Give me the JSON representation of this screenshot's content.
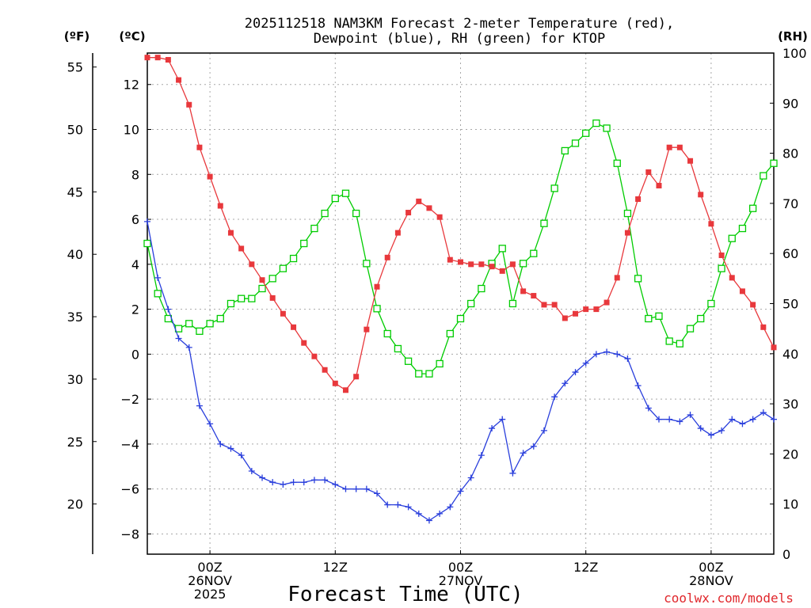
{
  "chart_data": {
    "type": "line",
    "title": [
      "2025112518 NAM3KM Forecast 2-meter Temperature (red),",
      "Dewpoint (blue), RH (green) for KTOP"
    ],
    "xlabel": "Forecast Time (UTC)",
    "credit": "coolwx.com/models",
    "units": {
      "fahrenheit": "(ºF)",
      "celsius": "(ºC)",
      "rh": "(RH)"
    },
    "x_range_hours": [
      0,
      60
    ],
    "x_ticks": [
      {
        "hour": 6,
        "lines": [
          "00Z",
          "26NOV",
          "2025"
        ]
      },
      {
        "hour": 18,
        "lines": [
          "12Z"
        ]
      },
      {
        "hour": 30,
        "lines": [
          "00Z",
          "27NOV"
        ]
      },
      {
        "hour": 42,
        "lines": [
          "12Z"
        ]
      },
      {
        "hour": 54,
        "lines": [
          "00Z",
          "28NOV"
        ]
      }
    ],
    "y_celsius": {
      "range": [
        -8.9,
        13.4
      ],
      "ticks": [
        "-8",
        "-6",
        "-4",
        "-2",
        "0",
        "2",
        "4",
        "6",
        "8",
        "10",
        "12"
      ]
    },
    "y_fahrenheit": {
      "ticks": [
        "20",
        "25",
        "30",
        "35",
        "40",
        "45",
        "50",
        "55"
      ]
    },
    "y_rh": {
      "range": [
        0,
        100
      ],
      "ticks": [
        "0",
        "10",
        "20",
        "30",
        "40",
        "50",
        "60",
        "70",
        "80",
        "90",
        "100"
      ]
    },
    "colors": {
      "temperature": "#e8383c",
      "dewpoint": "#2a3fdc",
      "rh": "#00cc00"
    },
    "series": [
      {
        "name": "Temperature",
        "units": "C",
        "marker": "filled-square",
        "values": [
          13.2,
          13.2,
          13.1,
          12.2,
          11.1,
          9.2,
          7.9,
          6.6,
          5.4,
          4.7,
          4.0,
          3.3,
          2.5,
          1.8,
          1.2,
          0.5,
          -0.1,
          -0.7,
          -1.3,
          -1.6,
          -1.0,
          1.1,
          3.0,
          4.3,
          5.4,
          6.3,
          6.8,
          6.5,
          6.1,
          4.2,
          4.1,
          4.0,
          4.0,
          3.9,
          3.7,
          4.0,
          2.8,
          2.6,
          2.2,
          2.2,
          1.6,
          1.8,
          2.0,
          2.0,
          2.3,
          3.4,
          5.4,
          6.9,
          8.1,
          7.5,
          9.2,
          9.2,
          8.6,
          7.1,
          5.8,
          4.4,
          3.4,
          2.8,
          2.2,
          1.2,
          0.3
        ]
      },
      {
        "name": "Dewpoint",
        "units": "C",
        "marker": "plus",
        "values": [
          5.9,
          3.4,
          2.0,
          0.7,
          0.3,
          -2.3,
          -3.1,
          -4.0,
          -4.2,
          -4.5,
          -5.2,
          -5.5,
          -5.7,
          -5.8,
          -5.7,
          -5.7,
          -5.6,
          -5.6,
          -5.8,
          -6.0,
          -6.0,
          -6.0,
          -6.2,
          -6.7,
          -6.7,
          -6.8,
          -7.1,
          -7.4,
          -7.1,
          -6.8,
          -6.1,
          -5.5,
          -4.5,
          -3.3,
          -2.9,
          -5.3,
          -4.4,
          -4.1,
          -3.4,
          -1.9,
          -1.3,
          -0.8,
          -0.4,
          0.0,
          0.1,
          0.0,
          -0.2,
          -1.4,
          -2.4,
          -2.9,
          -2.9,
          -3.0,
          -2.7,
          -3.3,
          -3.6,
          -3.4,
          -2.9,
          -3.1,
          -2.9,
          -2.6,
          -2.9
        ]
      },
      {
        "name": "RH",
        "units": "%",
        "marker": "open-square",
        "values": [
          62,
          52,
          47,
          45,
          46,
          44.5,
          46,
          47,
          50,
          51,
          51,
          53,
          55,
          57,
          59,
          62,
          65,
          68,
          71,
          72,
          68,
          58,
          49,
          44,
          41,
          38.5,
          36,
          36,
          38,
          44,
          47,
          50,
          53,
          58,
          61,
          50,
          58,
          60,
          66,
          73,
          80.5,
          82,
          84,
          86,
          85,
          78,
          68,
          55,
          47,
          47.5,
          42.5,
          42,
          45,
          47,
          50,
          57,
          63,
          65,
          69,
          75.5,
          78
        ]
      }
    ]
  }
}
